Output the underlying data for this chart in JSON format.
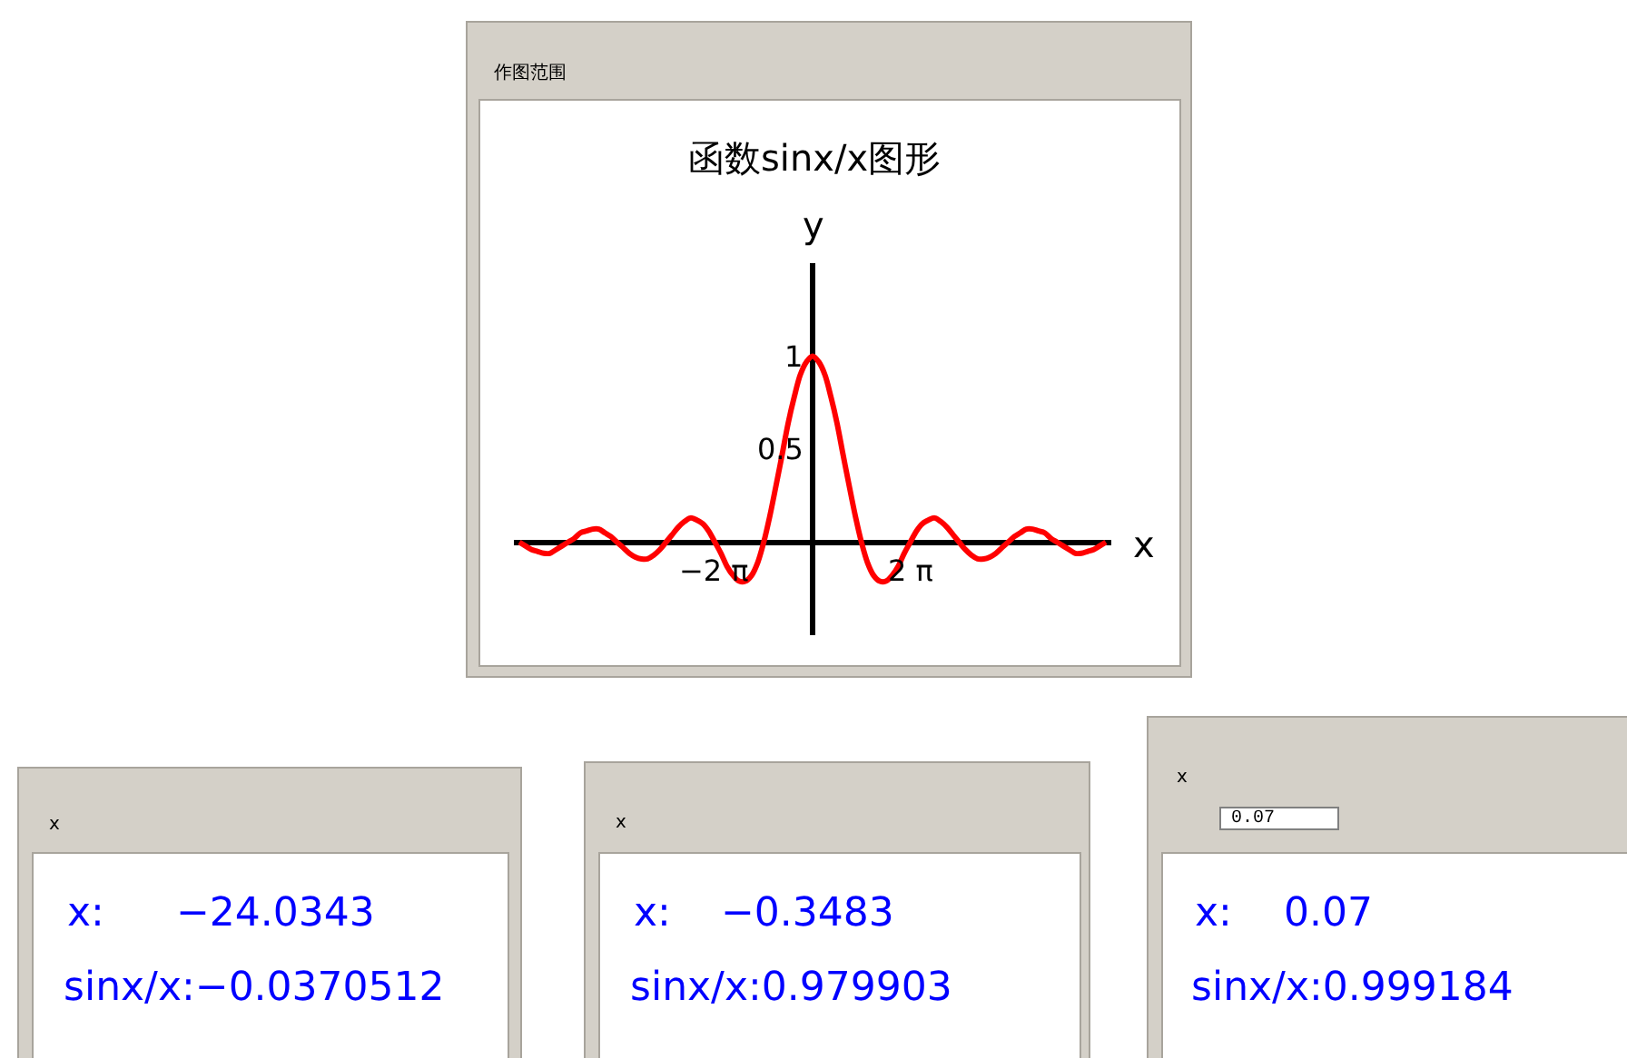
{
  "chart_data": [
    {
      "type": "line",
      "title": "函数sinx/x图形",
      "xlabel": "x",
      "ylabel": "y",
      "annotations": [
        "作图范围"
      ],
      "x": [
        -18.85,
        -18.46,
        -18.06,
        -17.67,
        -17.28,
        -16.89,
        -16.49,
        -16.1,
        -15.71,
        -15.32,
        -14.92,
        -14.53,
        -14.14,
        -13.74,
        -13.35,
        -12.96,
        -12.57,
        -12.17,
        -11.78,
        -11.39,
        -11.0,
        -10.6,
        -10.21,
        -9.82,
        -9.42,
        -9.03,
        -8.64,
        -8.25,
        -7.85,
        -7.46,
        -7.07,
        -6.68,
        -6.28,
        -5.89,
        -5.5,
        -5.1,
        -4.71,
        -4.32,
        -3.93,
        -3.53,
        -3.14,
        -2.75,
        -2.36,
        -1.96,
        -1.57,
        -1.18,
        -0.79,
        -0.39,
        0,
        0.39,
        0.79,
        1.18,
        1.57,
        1.96,
        2.36,
        2.75,
        3.14,
        3.53,
        3.93,
        4.32,
        4.71,
        5.1,
        5.5,
        5.89,
        6.28,
        6.68,
        7.07,
        7.46,
        7.85,
        8.25,
        8.64,
        9.03,
        9.42,
        9.82,
        10.21,
        10.6,
        11.0,
        11.39,
        11.78,
        12.17,
        12.57,
        12.96,
        13.35,
        13.74,
        14.14,
        14.53,
        14.92,
        15.32,
        15.71,
        16.1,
        16.49,
        16.89,
        17.28,
        17.67,
        18.06,
        18.46,
        18.85
      ],
      "series": [
        {
          "color": "#ff0000",
          "values": [
            0,
            -0.02,
            -0.04,
            -0.05,
            -0.06,
            -0.06,
            -0.04,
            -0.02,
            0,
            0.02,
            0.05,
            0.06,
            0.07,
            0.07,
            0.05,
            0.03,
            0,
            -0.03,
            -0.06,
            -0.08,
            -0.09,
            -0.09,
            -0.07,
            -0.04,
            0,
            0.04,
            0.08,
            0.11,
            0.13,
            0.12,
            0.1,
            0.06,
            0,
            -0.06,
            -0.13,
            -0.18,
            -0.21,
            -0.21,
            -0.18,
            -0.11,
            0,
            0.14,
            0.3,
            0.47,
            0.64,
            0.78,
            0.9,
            0.97,
            1,
            0.97,
            0.9,
            0.78,
            0.64,
            0.47,
            0.3,
            0.14,
            0,
            -0.11,
            -0.18,
            -0.21,
            -0.21,
            -0.18,
            -0.13,
            -0.06,
            0,
            0.06,
            0.1,
            0.12,
            0.13,
            0.11,
            0.08,
            0.04,
            0,
            -0.04,
            -0.07,
            -0.09,
            -0.09,
            -0.08,
            -0.06,
            -0.03,
            0,
            0.03,
            0.05,
            0.07,
            0.07,
            0.06,
            0.05,
            0.02,
            0,
            -0.02,
            -0.04,
            -0.06,
            -0.06,
            -0.05,
            -0.04,
            -0.02,
            0
          ]
        }
      ],
      "xlim": [
        -19.2,
        19.2
      ],
      "ylim": [
        -0.5,
        1.5
      ],
      "xticks": [
        {
          "value": -6.28,
          "label": "−2 π"
        },
        {
          "value": 6.28,
          "label": "2 π"
        }
      ],
      "yticks": [
        0.5,
        1
      ],
      "marker": "none",
      "line_style": "solid"
    },
    {
      "type": "other",
      "annotations": [
        "x",
        "x:",
        "−24.0343",
        "sinx/x:",
        "−0.0370512"
      ]
    },
    {
      "type": "other",
      "annotations": [
        "x",
        "x:",
        "−0.3483",
        "sinx/x:",
        "0.979903"
      ]
    },
    {
      "type": "other",
      "annotations": [
        "x",
        "0.07",
        "x:",
        "0.07",
        "sinx/x:",
        "0.999184"
      ]
    }
  ]
}
